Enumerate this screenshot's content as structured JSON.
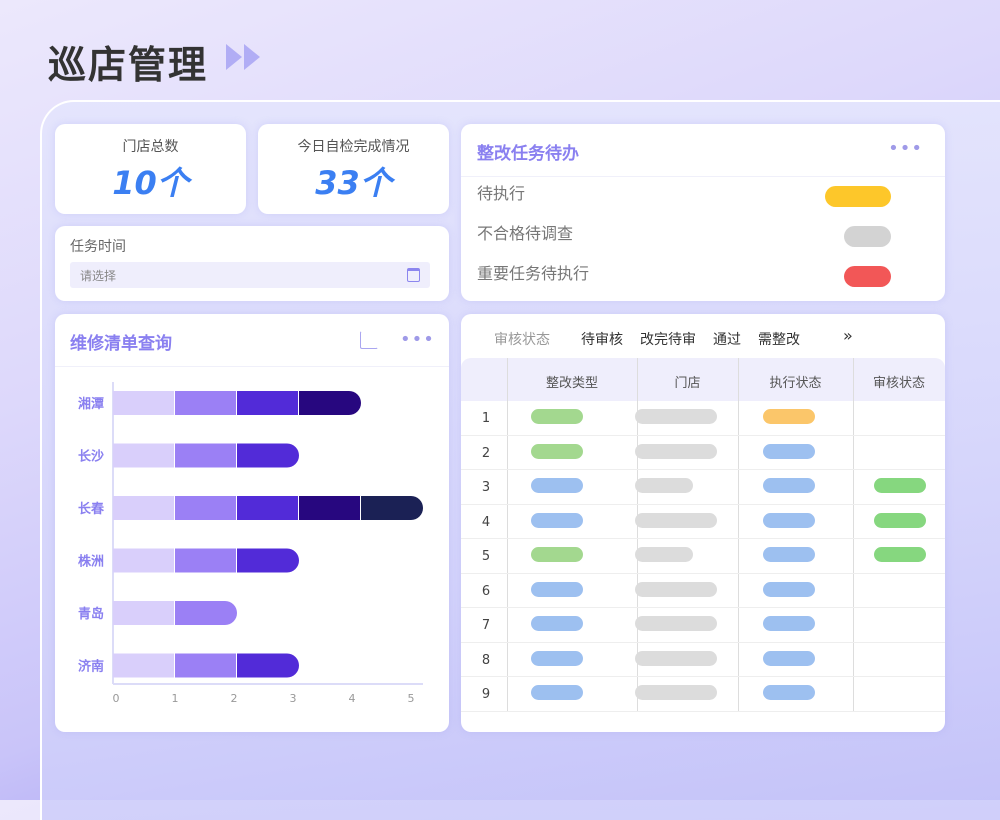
{
  "header": {
    "title": "巡店管理"
  },
  "stats": [
    {
      "label": "门店总数",
      "value": "10个"
    },
    {
      "label": "今日自检完成情况",
      "value": "33个"
    }
  ],
  "task_time": {
    "label": "任务时间",
    "placeholder": "请选择"
  },
  "todo": {
    "title": "整改任务待办",
    "items": [
      {
        "label": "待执行",
        "color": "#fdc72a"
      },
      {
        "label": "不合格待调查",
        "color": "#d3d3d3"
      },
      {
        "label": "重要任务待执行",
        "color": "#f25757"
      }
    ]
  },
  "chart_card": {
    "title": "维修清单查询"
  },
  "chart_data": {
    "type": "bar",
    "orientation": "horizontal",
    "stacked": true,
    "categories": [
      "湘潭",
      "长沙",
      "长春",
      "株洲",
      "青岛",
      "济南"
    ],
    "segment_colors": [
      "#d9cffb",
      "#9b80f5",
      "#522bd8",
      "#27077f",
      "#1b2155"
    ],
    "values": [
      4,
      3,
      5,
      3,
      2,
      3
    ],
    "xlim": [
      0,
      5
    ],
    "xticks": [
      "0",
      "1",
      "2",
      "3",
      "4",
      "5"
    ]
  },
  "table": {
    "filter_label": "审核状态",
    "filters": [
      "待审核",
      "改完待审",
      "通过",
      "需整改"
    ],
    "more": "»",
    "columns": [
      "",
      "整改类型",
      "门店",
      "执行状态",
      "审核状态"
    ],
    "rows": [
      {
        "index": "1",
        "type": "green",
        "store": "long",
        "exec": "orange",
        "audit": ""
      },
      {
        "index": "2",
        "type": "green",
        "store": "long",
        "exec": "blue",
        "audit": ""
      },
      {
        "index": "3",
        "type": "blue",
        "store": "short",
        "exec": "blue",
        "audit": "green"
      },
      {
        "index": "4",
        "type": "blue",
        "store": "long",
        "exec": "blue",
        "audit": "green"
      },
      {
        "index": "5",
        "type": "green",
        "store": "short",
        "exec": "blue",
        "audit": "green"
      },
      {
        "index": "6",
        "type": "blue",
        "store": "long",
        "exec": "blue",
        "audit": ""
      },
      {
        "index": "7",
        "type": "blue",
        "store": "long",
        "exec": "blue",
        "audit": ""
      },
      {
        "index": "8",
        "type": "blue",
        "store": "long",
        "exec": "blue",
        "audit": ""
      },
      {
        "index": "9",
        "type": "blue",
        "store": "long",
        "exec": "blue",
        "audit": ""
      }
    ],
    "pill_colors": {
      "green": "#a3d88f",
      "blue": "#9dc0f0",
      "orange": "#fbc66a",
      "gray": "#dcdcdc",
      "audit_green": "#86d77f"
    }
  }
}
